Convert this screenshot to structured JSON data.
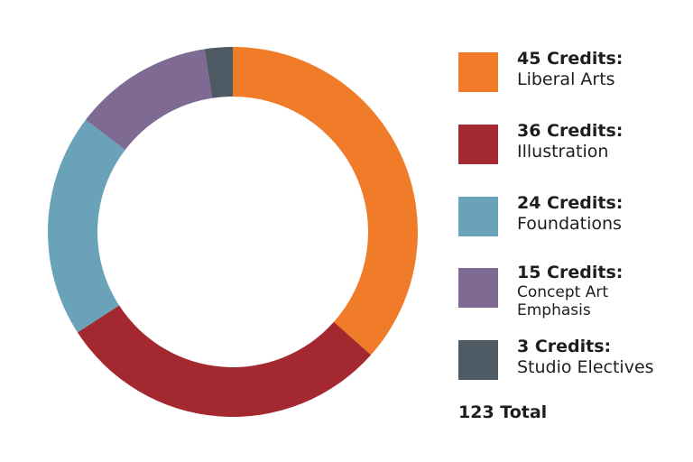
{
  "chart_data": {
    "type": "pie",
    "variant": "donut",
    "title": "",
    "categories": [
      "Liberal Arts",
      "Illustration",
      "Foundations",
      "Concept Art Emphasis",
      "Studio Electives"
    ],
    "values": [
      45,
      36,
      24,
      15,
      3
    ],
    "colors": [
      "#f07b29",
      "#a4282f",
      "#6aa3b9",
      "#7e6a92",
      "#4e5b64"
    ],
    "legend": [
      {
        "head": "45 Credits:",
        "label": "Liberal Arts"
      },
      {
        "head": "36 Credits:",
        "label": "Illustration"
      },
      {
        "head": "24 Credits:",
        "label": "Foundations"
      },
      {
        "head": "15 Credits:",
        "label": "Concept Art Emphasis"
      },
      {
        "head": "3 Credits:",
        "label": "Studio Electives"
      }
    ],
    "legend_position": "right",
    "total_label": "123 Total"
  }
}
